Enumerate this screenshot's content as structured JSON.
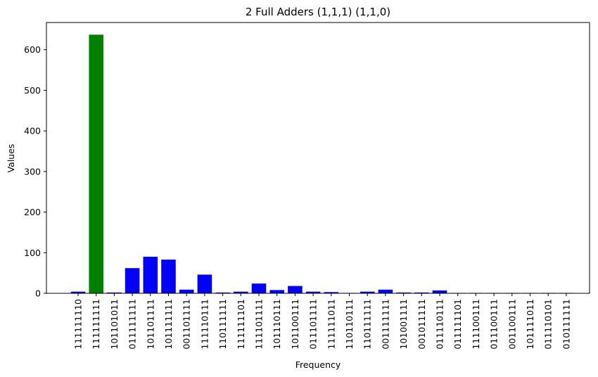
{
  "chart_data": {
    "type": "bar",
    "title": "2 Full Adders (1,1,1) (1,1,0)",
    "xlabel": "Frequency",
    "ylabel": "Values",
    "ylim": [
      0,
      667
    ],
    "yticks": [
      0,
      100,
      200,
      300,
      400,
      500,
      600
    ],
    "grid": false,
    "colors": {
      "default": "#0000ff",
      "highlight": "#008000"
    },
    "highlight_index": 1,
    "categories": [
      "111111110",
      "111111111",
      "101101011",
      "011111111",
      "101101111",
      "101111111",
      "001101111",
      "111110111",
      "110111111",
      "111111101",
      "111101111",
      "101110111",
      "101100111",
      "011101111",
      "111111011",
      "110110111",
      "110111111",
      "001111111",
      "101001111",
      "001011111",
      "011110111",
      "011111101",
      "111100111",
      "011100111",
      "001100111",
      "101111011",
      "011110101",
      "010111111"
    ],
    "values": [
      4,
      637,
      2,
      62,
      90,
      83,
      9,
      46,
      2,
      4,
      24,
      8,
      18,
      4,
      3,
      1,
      4,
      9,
      2,
      2,
      7,
      1,
      1,
      1,
      1,
      1,
      1,
      1
    ]
  }
}
